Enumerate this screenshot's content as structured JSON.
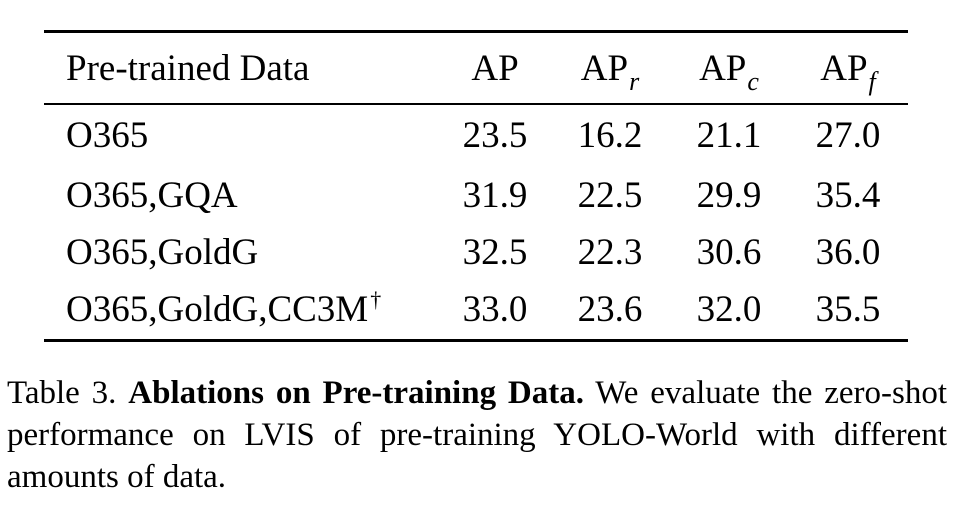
{
  "table": {
    "headers": {
      "data": "Pre-trained Data",
      "ap": {
        "main": "AP",
        "sub": ""
      },
      "ap_r": {
        "main": "AP",
        "sub": "r"
      },
      "ap_c": {
        "main": "AP",
        "sub": "c"
      },
      "ap_f": {
        "main": "AP",
        "sub": "f"
      }
    },
    "rows": [
      {
        "data": "O365",
        "dagger": "",
        "ap": "23.5",
        "ap_r": "16.2",
        "ap_c": "21.1",
        "ap_f": "27.0"
      },
      {
        "data": "O365,GQA",
        "dagger": "",
        "ap": "31.9",
        "ap_r": "22.5",
        "ap_c": "29.9",
        "ap_f": "35.4"
      },
      {
        "data": "O365,GoldG",
        "dagger": "",
        "ap": "32.5",
        "ap_r": "22.3",
        "ap_c": "30.6",
        "ap_f": "36.0"
      },
      {
        "data": "O365,GoldG,CC3M",
        "dagger": "†",
        "ap": "33.0",
        "ap_r": "23.6",
        "ap_c": "32.0",
        "ap_f": "35.5"
      }
    ],
    "bold_cells": [
      "2.ap_f",
      "3.ap",
      "3.ap_r",
      "3.ap_c"
    ]
  },
  "caption": {
    "label": "Table 3.",
    "title": "Ablations on Pre-training Data.",
    "text": "We evaluate the zero-shot performance on LVIS of pre-training YOLO-World with different amounts of data."
  }
}
